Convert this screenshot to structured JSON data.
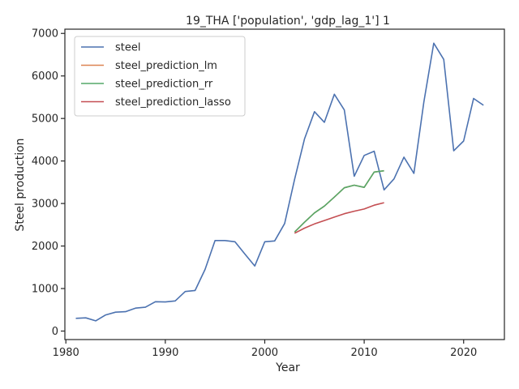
{
  "chart_data": {
    "type": "line",
    "title": "19_THA ['population', 'gdp_lag_1'] 1",
    "xlabel": "Year",
    "ylabel": "Steel production",
    "xlim": [
      1979.9,
      2024.1
    ],
    "ylim": [
      -200,
      7100
    ],
    "xticks": [
      1980,
      1990,
      2000,
      2010,
      2020
    ],
    "yticks": [
      0,
      1000,
      2000,
      3000,
      4000,
      5000,
      6000,
      7000
    ],
    "grid": false,
    "legend_position": "top-left",
    "series": [
      {
        "name": "steel",
        "color": "#4c72b0",
        "points": [
          [
            1981,
            300
          ],
          [
            1982,
            310
          ],
          [
            1983,
            240
          ],
          [
            1984,
            380
          ],
          [
            1985,
            445
          ],
          [
            1986,
            455
          ],
          [
            1987,
            540
          ],
          [
            1988,
            560
          ],
          [
            1989,
            690
          ],
          [
            1990,
            685
          ],
          [
            1991,
            710
          ],
          [
            1992,
            930
          ],
          [
            1993,
            955
          ],
          [
            1994,
            1450
          ],
          [
            1995,
            2130
          ],
          [
            1996,
            2130
          ],
          [
            1997,
            2100
          ],
          [
            1998,
            1810
          ],
          [
            1999,
            1530
          ],
          [
            2000,
            2100
          ],
          [
            2001,
            2120
          ],
          [
            2002,
            2530
          ],
          [
            2003,
            3570
          ],
          [
            2004,
            4520
          ],
          [
            2005,
            5160
          ],
          [
            2006,
            4910
          ],
          [
            2007,
            5570
          ],
          [
            2008,
            5200
          ],
          [
            2009,
            3640
          ],
          [
            2010,
            4130
          ],
          [
            2011,
            4230
          ],
          [
            2012,
            3320
          ],
          [
            2013,
            3580
          ],
          [
            2014,
            4090
          ],
          [
            2015,
            3710
          ],
          [
            2016,
            5390
          ],
          [
            2017,
            6770
          ],
          [
            2018,
            6390
          ],
          [
            2019,
            4240
          ],
          [
            2020,
            4470
          ],
          [
            2021,
            5470
          ],
          [
            2022,
            5310
          ]
        ]
      },
      {
        "name": "steel_prediction_lm",
        "color": "#dd8452",
        "points": [
          [
            2003,
            2330
          ],
          [
            2004,
            2560
          ],
          [
            2005,
            2780
          ],
          [
            2006,
            2940
          ],
          [
            2007,
            3150
          ],
          [
            2008,
            3370
          ],
          [
            2009,
            3430
          ],
          [
            2010,
            3380
          ],
          [
            2011,
            3740
          ],
          [
            2012,
            3770
          ]
        ]
      },
      {
        "name": "steel_prediction_rr",
        "color": "#55a868",
        "points": [
          [
            2003,
            2330
          ],
          [
            2004,
            2560
          ],
          [
            2005,
            2780
          ],
          [
            2006,
            2940
          ],
          [
            2007,
            3150
          ],
          [
            2008,
            3370
          ],
          [
            2009,
            3430
          ],
          [
            2010,
            3380
          ],
          [
            2011,
            3740
          ],
          [
            2012,
            3770
          ]
        ]
      },
      {
        "name": "steel_prediction_lasso",
        "color": "#c44e52",
        "points": [
          [
            2003,
            2300
          ],
          [
            2004,
            2420
          ],
          [
            2005,
            2520
          ],
          [
            2006,
            2600
          ],
          [
            2007,
            2680
          ],
          [
            2008,
            2760
          ],
          [
            2009,
            2820
          ],
          [
            2010,
            2870
          ],
          [
            2011,
            2960
          ],
          [
            2012,
            3020
          ]
        ]
      }
    ]
  }
}
